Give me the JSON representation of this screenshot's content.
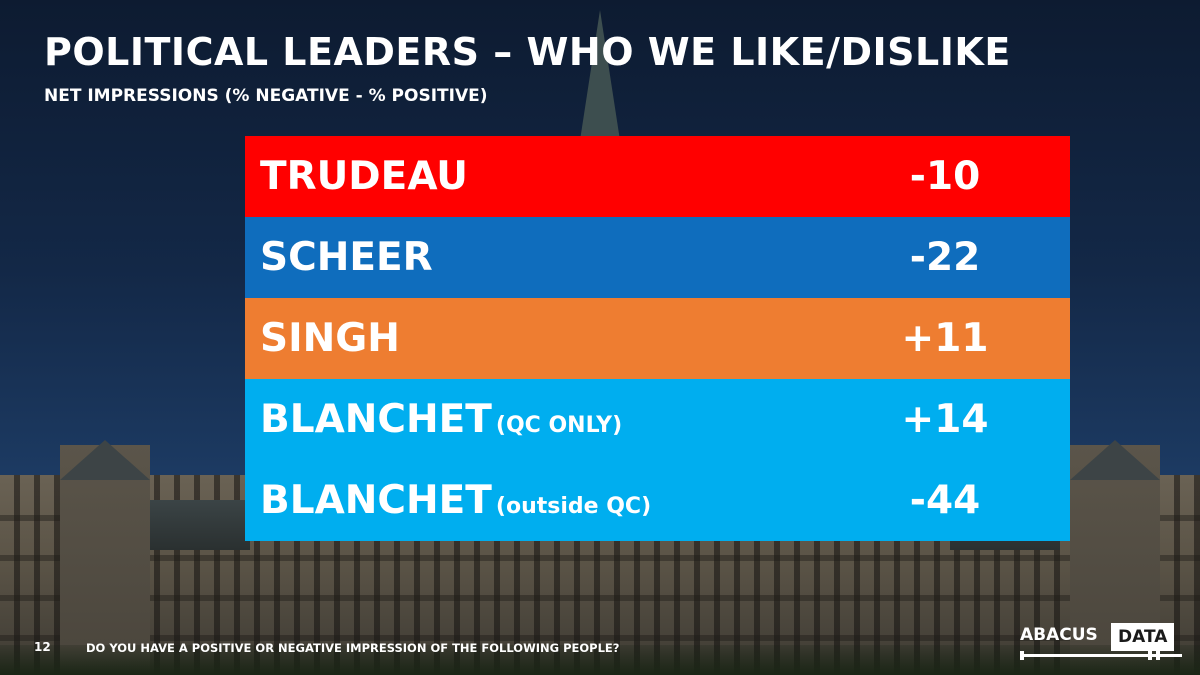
{
  "title": "POLITICAL LEADERS – WHO WE LIKE/DISLIKE",
  "subtitle": "NET IMPRESSIONS (% NEGATIVE - % POSITIVE)",
  "footer": {
    "page_number": "12",
    "question": "DO YOU HAVE A POSITIVE OR NEGATIVE IMPRESSION OF THE FOLLOWING PEOPLE?"
  },
  "logo": {
    "word1": "ABACUS",
    "word2": "DATA"
  },
  "chart_data": {
    "type": "table",
    "title": "POLITICAL LEADERS – WHO WE LIKE/DISLIKE",
    "subtitle": "NET IMPRESSIONS (% NEGATIVE - % POSITIVE)",
    "rows": [
      {
        "name": "TRUDEAU",
        "qualifier": "",
        "value": "-10",
        "numeric": -10,
        "color": "#ff0000"
      },
      {
        "name": "SCHEER",
        "qualifier": "",
        "value": "-22",
        "numeric": -22,
        "color": "#0f6dbd"
      },
      {
        "name": "SINGH",
        "qualifier": "",
        "value": "+11",
        "numeric": 11,
        "color": "#ee7d31"
      },
      {
        "name": "BLANCHET",
        "qualifier": "(QC ONLY)",
        "value": "+14",
        "numeric": 14,
        "color": "#00aeef"
      },
      {
        "name": "BLANCHET",
        "qualifier": "(outside QC)",
        "value": "-44",
        "numeric": -44,
        "color": "#00aeef"
      }
    ]
  }
}
